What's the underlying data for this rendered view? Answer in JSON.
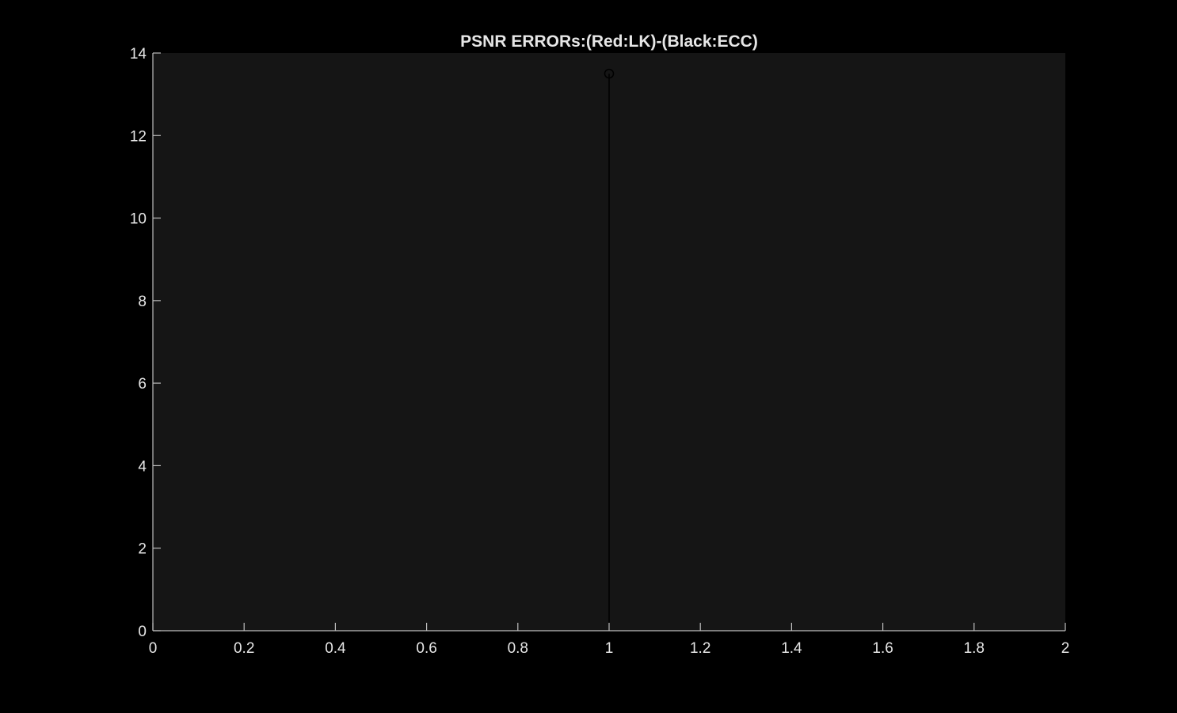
{
  "chart_data": {
    "type": "stem",
    "title": "PSNR ERRORs:(Red:LK)-(Black:ECC)",
    "xlabel": "",
    "ylabel": "",
    "xlim": [
      0,
      2
    ],
    "ylim": [
      0,
      14
    ],
    "xticks": [
      0,
      0.2,
      0.4,
      0.6,
      0.8,
      1,
      1.2,
      1.4,
      1.6,
      1.8,
      2
    ],
    "xtick_labels": [
      "0",
      "0.2",
      "0.4",
      "0.6",
      "0.8",
      "1",
      "1.2",
      "1.4",
      "1.6",
      "1.8",
      "2"
    ],
    "yticks": [
      0,
      2,
      4,
      6,
      8,
      10,
      12,
      14
    ],
    "ytick_labels": [
      "0",
      "2",
      "4",
      "6",
      "8",
      "10",
      "12",
      "14"
    ],
    "grid": false,
    "legend": "none",
    "series": [
      {
        "color": "#000000",
        "marker": "circle",
        "x": [
          1
        ],
        "y": [
          13.5
        ]
      }
    ]
  },
  "colors": {
    "figure_background": "#000000",
    "axes_background": "#151515",
    "axis_line": "#bfbfbf",
    "text": "#e6e6e6"
  }
}
